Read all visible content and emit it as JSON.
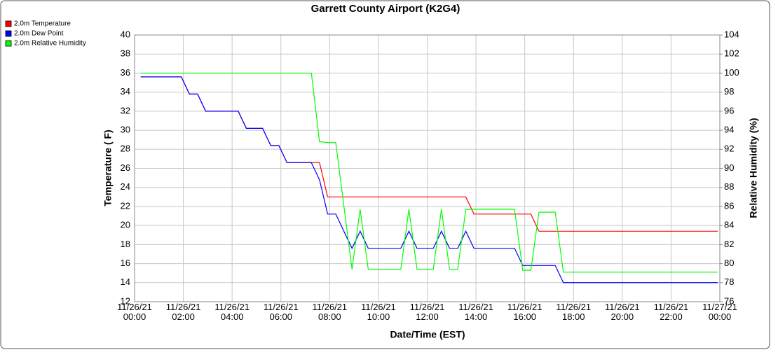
{
  "chart_data": {
    "type": "line",
    "title": "Garrett County Airport (K2G4)",
    "x_label": "Date/Time (EST)",
    "y_label": "Temperature ( F)",
    "y2_label": "Relative Humidity (%)",
    "x": [
      "2021-11-26 00:15",
      "2021-11-26 01:55",
      "2021-11-26 02:15",
      "2021-11-26 02:35",
      "2021-11-26 02:55",
      "2021-11-26 04:15",
      "2021-11-26 04:35",
      "2021-11-26 05:15",
      "2021-11-26 05:35",
      "2021-11-26 05:55",
      "2021-11-26 06:15",
      "2021-11-26 07:15",
      "2021-11-26 07:35",
      "2021-11-26 07:55",
      "2021-11-26 08:15",
      "2021-11-26 08:55",
      "2021-11-26 09:15",
      "2021-11-26 09:35",
      "2021-11-26 10:55",
      "2021-11-26 11:15",
      "2021-11-26 11:35",
      "2021-11-26 12:15",
      "2021-11-26 12:35",
      "2021-11-26 12:55",
      "2021-11-26 13:15",
      "2021-11-26 13:35",
      "2021-11-26 13:55",
      "2021-11-26 15:35",
      "2021-11-26 15:55",
      "2021-11-26 16:15",
      "2021-11-26 16:35",
      "2021-11-26 17:15",
      "2021-11-26 17:35",
      "2021-11-26 23:55"
    ],
    "series": [
      {
        "name": "2.0m Temperature",
        "color": "#ff0000",
        "values": [
          35.6,
          35.6,
          33.8,
          33.8,
          32.0,
          32.0,
          30.2,
          30.2,
          28.4,
          28.4,
          26.6,
          26.6,
          26.6,
          23.0,
          23.0,
          23.0,
          23.0,
          23.0,
          23.0,
          23.0,
          23.0,
          23.0,
          23.0,
          23.0,
          23.0,
          23.0,
          21.2,
          21.2,
          21.2,
          21.2,
          19.4,
          19.4,
          19.4,
          19.4
        ]
      },
      {
        "name": "2.0m Dew Point",
        "color": "#0000ff",
        "values": [
          35.6,
          35.6,
          33.8,
          33.8,
          32.0,
          32.0,
          30.2,
          30.2,
          28.4,
          28.4,
          26.6,
          26.6,
          24.8,
          21.2,
          21.2,
          17.6,
          19.4,
          17.6,
          17.6,
          19.4,
          17.6,
          17.6,
          19.4,
          17.6,
          17.6,
          19.4,
          17.6,
          17.6,
          15.8,
          15.8,
          15.8,
          15.8,
          14.0,
          14.0
        ]
      },
      {
        "name": "2.0m Relative Humidity",
        "color": "#00ff00",
        "axis": "y2",
        "values": [
          100,
          100,
          100,
          100,
          100,
          100,
          100,
          100,
          100,
          100,
          100,
          100,
          92.8,
          92.7,
          92.7,
          79.4,
          85.7,
          79.4,
          79.4,
          85.7,
          79.4,
          79.4,
          85.7,
          79.4,
          79.4,
          85.7,
          85.7,
          85.7,
          79.3,
          79.3,
          85.4,
          85.4,
          79.1,
          79.1
        ]
      }
    ],
    "xlim": [
      "2021-11-26 00:00",
      "2021-11-27 00:00"
    ],
    "xticks": [
      {
        "value": "2021-11-26 00:00",
        "label": "11/26/21 00:00"
      },
      {
        "value": "2021-11-26 02:00",
        "label": "11/26/21 02:00"
      },
      {
        "value": "2021-11-26 04:00",
        "label": "11/26/21 04:00"
      },
      {
        "value": "2021-11-26 06:00",
        "label": "11/26/21 06:00"
      },
      {
        "value": "2021-11-26 08:00",
        "label": "11/26/21 08:00"
      },
      {
        "value": "2021-11-26 10:00",
        "label": "11/26/21 10:00"
      },
      {
        "value": "2021-11-26 12:00",
        "label": "11/26/21 12:00"
      },
      {
        "value": "2021-11-26 14:00",
        "label": "11/26/21 14:00"
      },
      {
        "value": "2021-11-26 16:00",
        "label": "11/26/21 16:00"
      },
      {
        "value": "2021-11-26 18:00",
        "label": "11/26/21 18:00"
      },
      {
        "value": "2021-11-26 20:00",
        "label": "11/26/21 20:00"
      },
      {
        "value": "2021-11-26 22:00",
        "label": "11/26/21 22:00"
      },
      {
        "value": "2021-11-27 00:00",
        "label": "11/27/21 00:00"
      }
    ],
    "ylim": [
      12,
      40
    ],
    "yticks": [
      12,
      14,
      16,
      18,
      20,
      22,
      24,
      26,
      28,
      30,
      32,
      34,
      36,
      38,
      40
    ],
    "y2lim": [
      76,
      104
    ],
    "y2ticks": [
      76,
      78,
      80,
      82,
      84,
      86,
      88,
      90,
      92,
      94,
      96,
      98,
      100,
      102,
      104
    ],
    "grid": true,
    "legend": "top-left"
  }
}
